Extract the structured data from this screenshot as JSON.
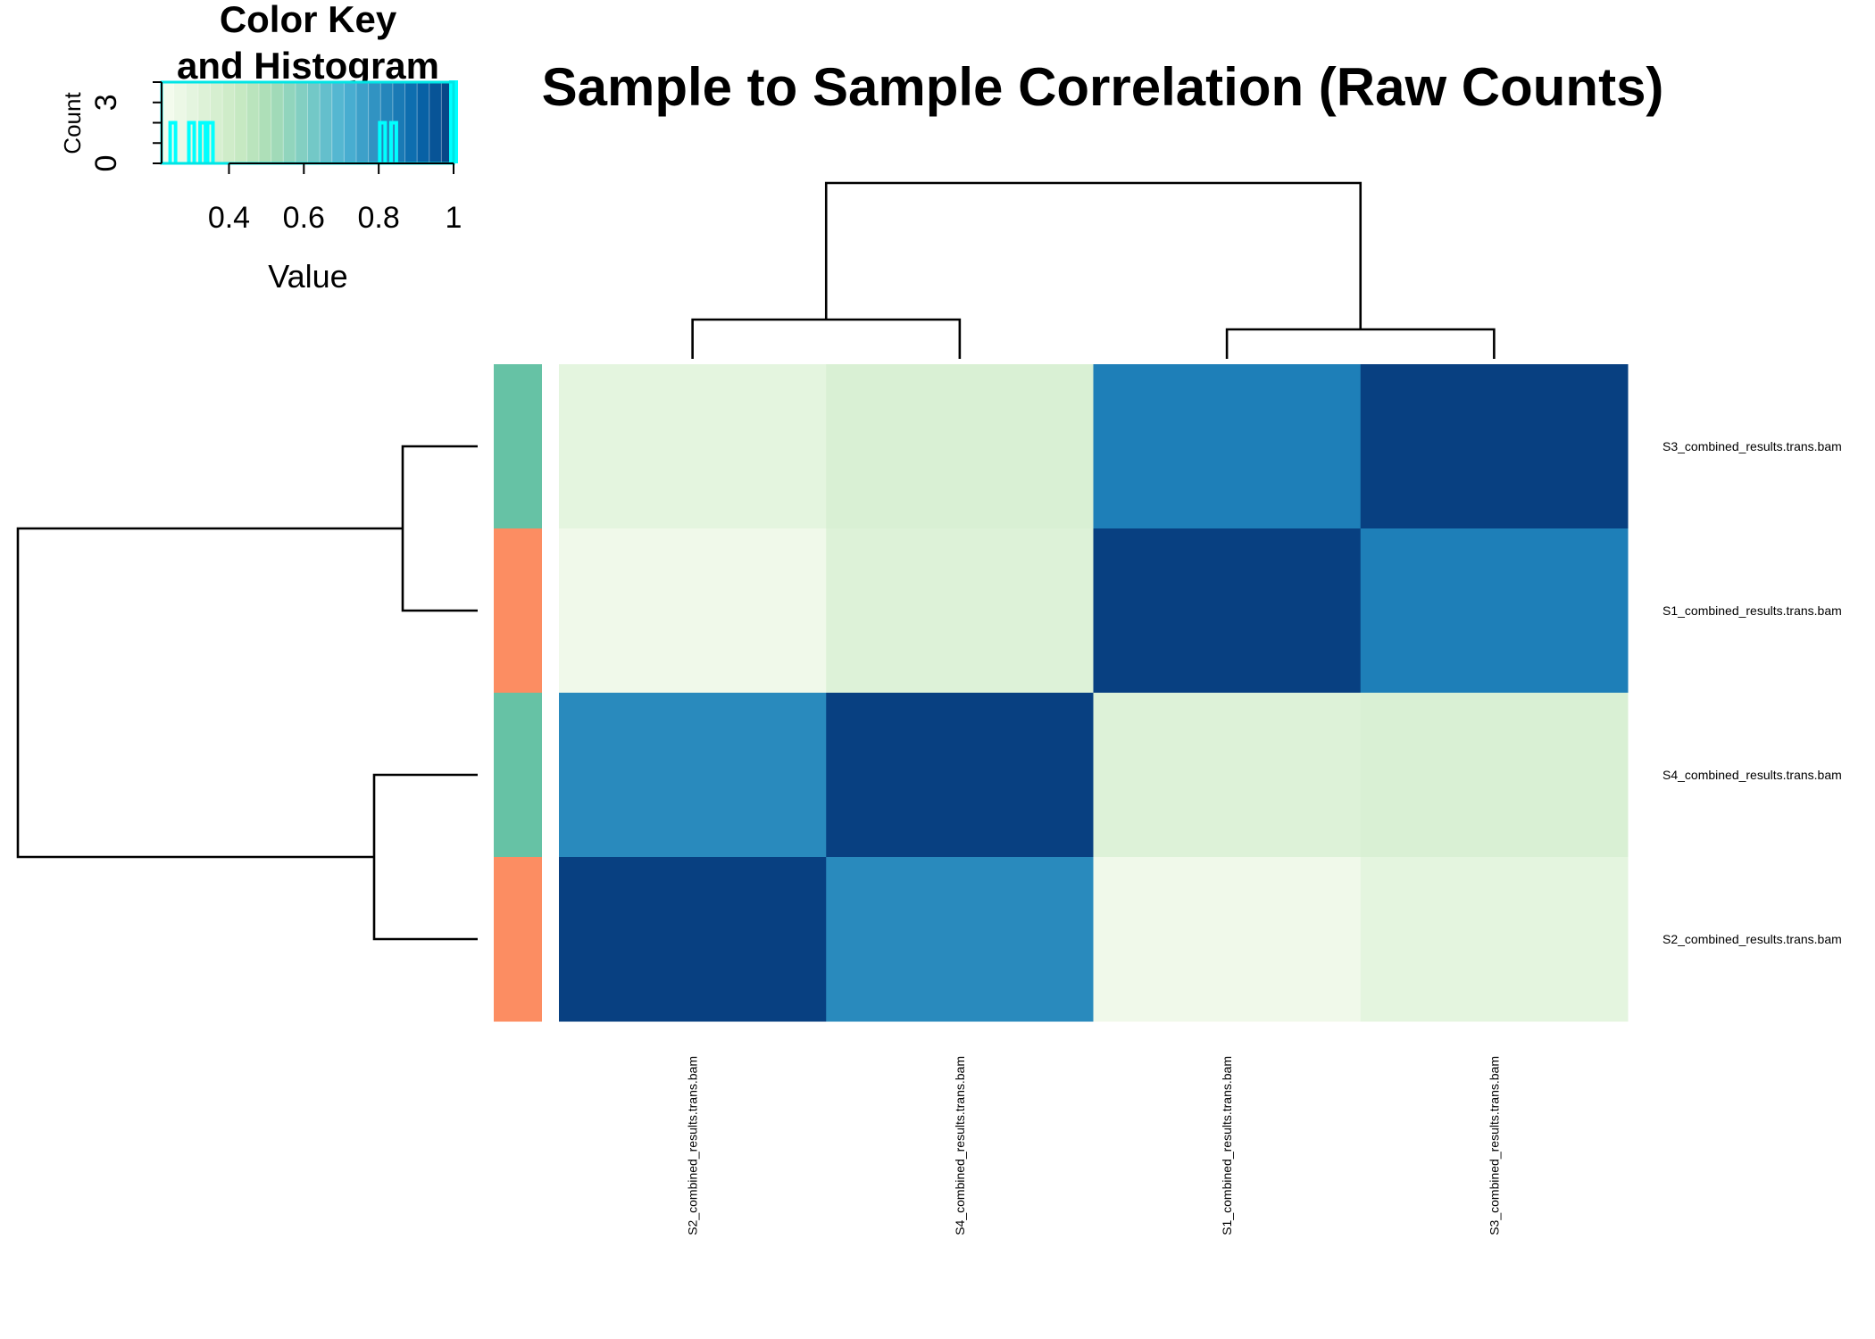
{
  "chart_data": {
    "type": "heatmap",
    "title": "Sample to Sample Correlation (Raw Counts)",
    "rows": [
      "S3_combined_results.trans.bam",
      "S1_combined_results.trans.bam",
      "S4_combined_results.trans.bam",
      "S2_combined_results.trans.bam"
    ],
    "columns": [
      "S2_combined_results.trans.bam",
      "S4_combined_results.trans.bam",
      "S1_combined_results.trans.bam",
      "S3_combined_results.trans.bam"
    ],
    "values": [
      [
        0.3,
        0.35,
        0.84,
        1.0
      ],
      [
        0.25,
        0.33,
        1.0,
        0.84
      ],
      [
        0.81,
        1.0,
        0.33,
        0.35
      ],
      [
        1.0,
        0.81,
        0.25,
        0.3
      ]
    ],
    "row_side_colors": [
      "#66c2a5",
      "#fc8d62",
      "#66c2a5",
      "#fc8d62"
    ],
    "color_scale": {
      "min": 0.22,
      "max": 1.0,
      "colors": [
        "#f7fcf0",
        "#e0f3db",
        "#ccebc5",
        "#a8ddb5",
        "#7bccc4",
        "#4eb3d3",
        "#2b8cbe",
        "#0868ac",
        "#084081"
      ]
    },
    "color_key": {
      "title_line1": "Color Key",
      "title_line2": "and Histogram",
      "xlabel": "Value",
      "ylabel": "Count",
      "xticks": [
        "0.4",
        "0.6",
        "0.8",
        "1"
      ],
      "xtick_values": [
        0.4,
        0.6,
        0.8,
        1.0
      ],
      "yticks": [
        "0",
        "3"
      ],
      "ytick_values": [
        0,
        3
      ],
      "histogram_values": [
        0.25,
        0.3,
        0.33,
        0.35,
        0.81,
        0.84,
        1.0
      ],
      "histogram_counts": [
        2,
        2,
        2,
        2,
        2,
        2,
        4
      ],
      "ymax": 4
    },
    "row_dendrogram": "((S3,S1),(S4,S2))",
    "col_dendrogram": "((S2,S4),(S1,S3))"
  }
}
